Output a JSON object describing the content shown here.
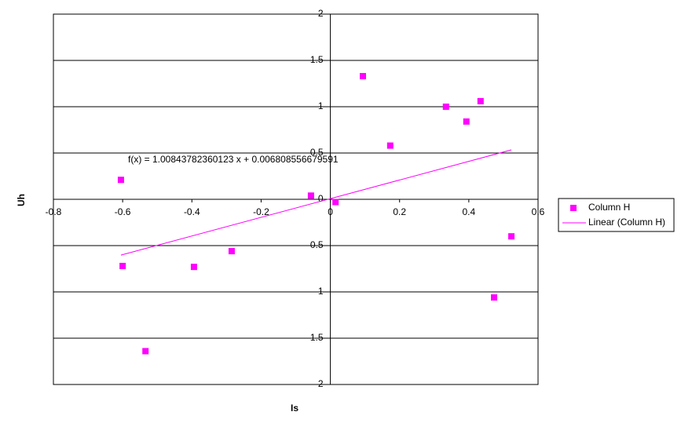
{
  "chart_data": {
    "type": "scatter",
    "x_label": "Is",
    "y_label": "Uh",
    "annotation": "f(x) = 1.00843782360123 x + 0.006808556679591",
    "xlim": [
      -0.8,
      0.6
    ],
    "ylim": [
      -2,
      2
    ],
    "xticks": [
      -0.8,
      -0.6,
      -0.4,
      -0.2,
      0,
      0.2,
      0.4,
      0.6
    ],
    "yticks": [
      {
        "value": -2,
        "label": "2"
      },
      {
        "value": -1.5,
        "label": "1.5"
      },
      {
        "value": -1,
        "label": "1"
      },
      {
        "value": -0.5,
        "label": "0.5"
      },
      0,
      0.5,
      1,
      1.5,
      2
    ],
    "grid": true,
    "legend": "right",
    "series": [
      {
        "name": "Column H",
        "color": "#ff00ff",
        "kind": "points",
        "x": [
          -0.605,
          -0.6,
          -0.534,
          -0.394,
          -0.285,
          -0.056,
          0.015,
          0.094,
          0.173,
          0.334,
          0.393,
          0.434,
          0.473,
          0.523
        ],
        "values": [
          0.21,
          -0.72,
          -1.64,
          -0.73,
          -0.56,
          0.04,
          -0.03,
          1.33,
          0.58,
          1.0,
          0.84,
          1.06,
          -1.06,
          -0.4
        ]
      },
      {
        "name": "Linear (Column H)",
        "color": "#ff00ff",
        "kind": "line",
        "x": [
          -0.605,
          0.523
        ],
        "values": [
          -0.603,
          0.534
        ]
      }
    ]
  }
}
